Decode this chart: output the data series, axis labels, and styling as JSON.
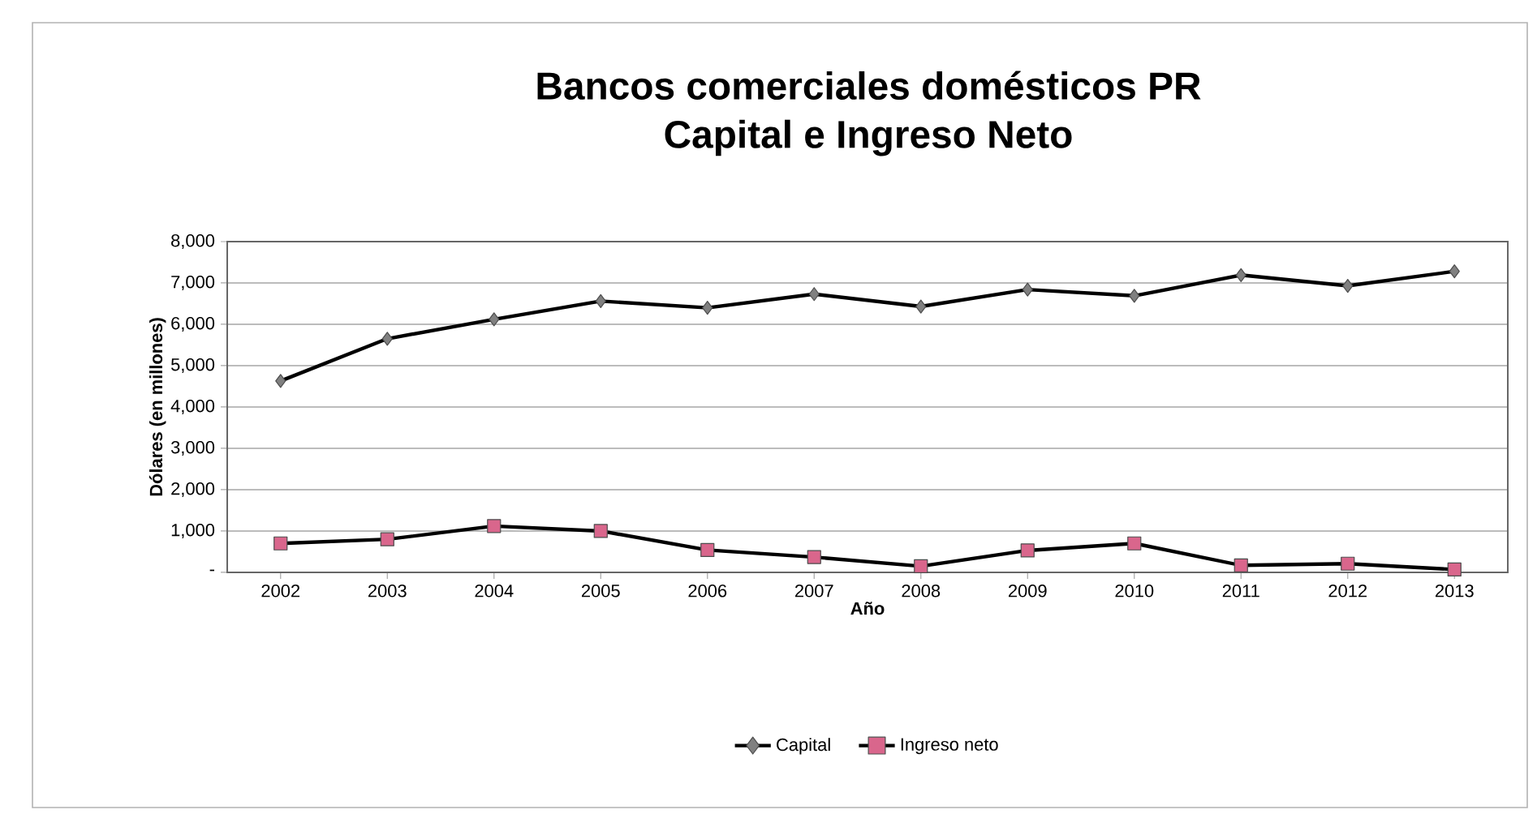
{
  "chart_data": {
    "type": "line",
    "title": "Bancos comerciales domésticos PR",
    "subtitle": "Capital e Ingreso Neto",
    "xlabel": "Año",
    "ylabel": "Dólares (en millones)",
    "categories": [
      "2002",
      "2003",
      "2004",
      "2005",
      "2006",
      "2007",
      "2008",
      "2009",
      "2010",
      "2011",
      "2012",
      "2013"
    ],
    "series": [
      {
        "name": "Capital",
        "color": "#808080",
        "marker": "diamond",
        "values": [
          4630,
          5650,
          6120,
          6560,
          6400,
          6730,
          6430,
          6840,
          6690,
          7190,
          6930,
          7280
        ]
      },
      {
        "name": "Ingreso neto",
        "color": "#d9668c",
        "marker": "square",
        "values": [
          700,
          800,
          1120,
          1000,
          540,
          370,
          150,
          530,
          700,
          170,
          210,
          70
        ]
      }
    ],
    "ylim": [
      0,
      8000
    ],
    "yticks": [
      {
        "value": 0,
        "label": "-"
      },
      {
        "value": 1000,
        "label": "1,000"
      },
      {
        "value": 2000,
        "label": "2,000"
      },
      {
        "value": 3000,
        "label": "3,000"
      },
      {
        "value": 4000,
        "label": "4,000"
      },
      {
        "value": 5000,
        "label": "5,000"
      },
      {
        "value": 6000,
        "label": "6,000"
      },
      {
        "value": 7000,
        "label": "7,000"
      },
      {
        "value": 8000,
        "label": "8,000"
      }
    ],
    "grid": "y",
    "legend": "bottom",
    "line_style": "solid"
  }
}
